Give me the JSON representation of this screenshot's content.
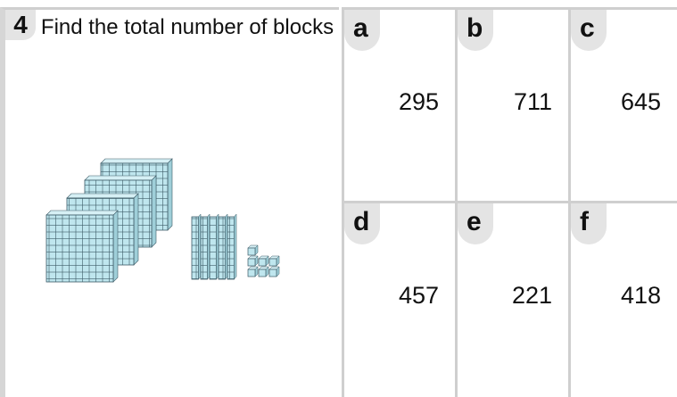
{
  "question": {
    "number": "4",
    "text": "Find the total number of blocks"
  },
  "options": [
    {
      "letter": "a",
      "value": 295
    },
    {
      "letter": "b",
      "value": 711
    },
    {
      "letter": "c",
      "value": 645
    },
    {
      "letter": "d",
      "value": 457
    },
    {
      "letter": "e",
      "value": 221
    },
    {
      "letter": "f",
      "value": 418
    }
  ]
}
